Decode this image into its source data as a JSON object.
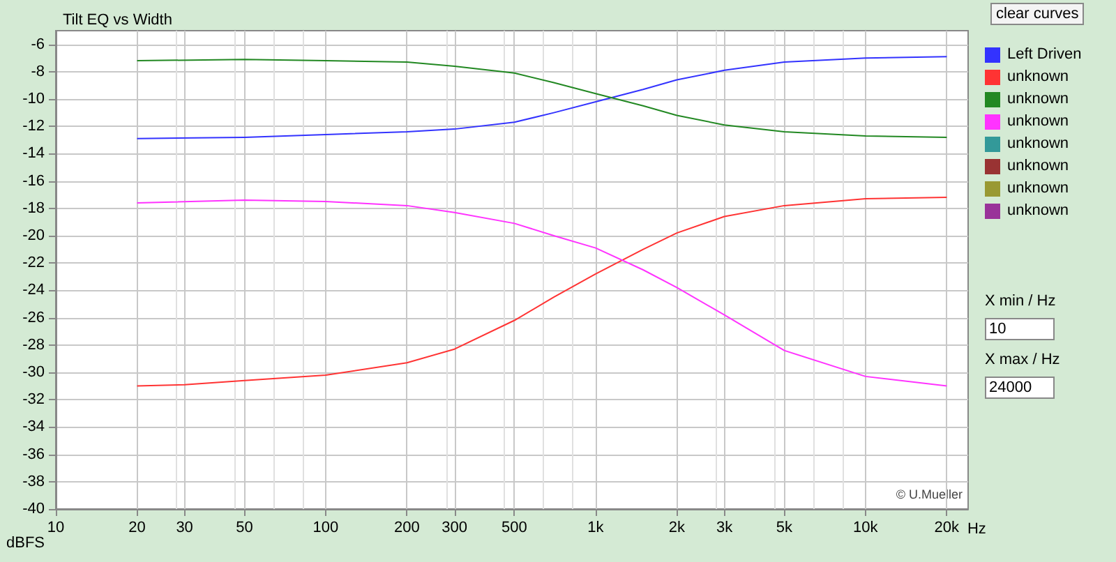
{
  "chart_data": {
    "type": "line",
    "title": "Tilt EQ vs Width",
    "ylabel": "dBFS",
    "xlim": [
      10,
      24000
    ],
    "ylim": [
      -40,
      -5
    ],
    "log": "x",
    "grid": true,
    "legend": "right",
    "marker": "none",
    "line_style": "solid",
    "xticks": [
      10,
      20,
      30,
      50,
      100,
      200,
      300,
      500,
      {
        "value": 1000,
        "label": "1k"
      },
      {
        "value": 2000,
        "label": "2k"
      },
      {
        "value": 3000,
        "label": "3k"
      },
      {
        "value": 5000,
        "label": "5k"
      },
      {
        "value": 10000,
        "label": "10k"
      },
      {
        "value": 20000,
        "label": "20k"
      }
    ],
    "xlabel": "Hz",
    "yticks": [
      -6,
      -8,
      -10,
      -12,
      -14,
      -16,
      -18,
      -20,
      -22,
      -24,
      -26,
      -28,
      -30,
      -32,
      -34,
      -36,
      -38,
      -40
    ],
    "series": [
      {
        "name": "Left Driven",
        "color": "#3333ff",
        "x": [
          20,
          50,
          100,
          200,
          300,
          500,
          700,
          1000,
          1500,
          2000,
          3000,
          5000,
          10000,
          20000
        ],
        "values": [
          -12.9,
          -12.8,
          -12.6,
          -12.4,
          -12.2,
          -11.7,
          -11.0,
          -10.2,
          -9.3,
          -8.6,
          -7.9,
          -7.3,
          -7.0,
          -6.9
        ]
      },
      {
        "name": "unknown",
        "color": "#ff3333",
        "x": [
          20,
          30,
          50,
          100,
          200,
          300,
          500,
          700,
          1000,
          1500,
          2000,
          3000,
          5000,
          10000,
          20000
        ],
        "values": [
          -31.0,
          -30.9,
          -30.6,
          -30.2,
          -29.3,
          -28.3,
          -26.2,
          -24.5,
          -22.8,
          -21.0,
          -19.8,
          -18.6,
          -17.8,
          -17.3,
          -17.2
        ]
      },
      {
        "name": "unknown",
        "color": "#228822",
        "x": [
          20,
          50,
          100,
          200,
          300,
          500,
          700,
          1000,
          1500,
          2000,
          3000,
          5000,
          10000,
          20000
        ],
        "values": [
          -7.2,
          -7.1,
          -7.2,
          -7.3,
          -7.6,
          -8.1,
          -8.8,
          -9.6,
          -10.5,
          -11.2,
          -11.9,
          -12.4,
          -12.7,
          -12.8
        ]
      },
      {
        "name": "unknown",
        "color": "#ff33ff",
        "x": [
          20,
          50,
          100,
          200,
          300,
          500,
          700,
          1000,
          1500,
          2000,
          3000,
          5000,
          10000,
          20000
        ],
        "values": [
          -17.6,
          -17.4,
          -17.5,
          -17.8,
          -18.3,
          -19.1,
          -20.0,
          -20.9,
          -22.5,
          -23.8,
          -25.8,
          -28.4,
          -30.3,
          -31.0
        ]
      },
      {
        "name": "unknown",
        "color": "#339999"
      },
      {
        "name": "unknown",
        "color": "#993333"
      },
      {
        "name": "unknown",
        "color": "#999933"
      },
      {
        "name": "unknown",
        "color": "#993399"
      }
    ],
    "annotations": [
      "© U.Mueller",
      "clear curves",
      "X min / Hz",
      "10",
      "X max / Hz",
      "24000"
    ]
  }
}
